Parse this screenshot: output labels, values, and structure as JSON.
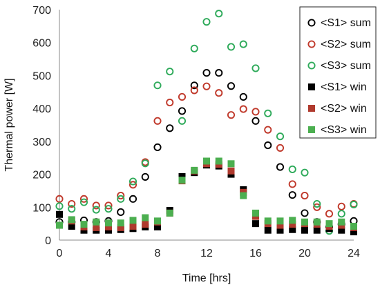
{
  "chart_data": {
    "type": "scatter",
    "title": "",
    "xlabel": "Time [hrs]",
    "ylabel": "Thermal power [W]",
    "xlim": [
      0,
      24
    ],
    "ylim": [
      0,
      700
    ],
    "xticks": [
      0,
      4,
      8,
      12,
      16,
      20,
      24
    ],
    "yticks": [
      0,
      100,
      200,
      300,
      400,
      500,
      600,
      700
    ],
    "grid": false,
    "legend_position": "top-right",
    "x": [
      0,
      1,
      2,
      3,
      4,
      5,
      6,
      7,
      8,
      9,
      10,
      11,
      12,
      13,
      14,
      15,
      16,
      17,
      18,
      19,
      20,
      21,
      22,
      23,
      24
    ],
    "series": [
      {
        "name": "<S1> sum",
        "marker": "open-circle",
        "color": "#000000",
        "values": [
          55,
          55,
          60,
          55,
          58,
          85,
          125,
          192,
          282,
          340,
          392,
          470,
          508,
          508,
          468,
          435,
          362,
          288,
          222,
          137,
          82,
          55,
          40,
          48,
          58
        ]
      },
      {
        "name": "<S2> sum",
        "marker": "open-circle",
        "color": "#c0392b",
        "values": [
          125,
          110,
          125,
          105,
          105,
          135,
          168,
          237,
          362,
          418,
          435,
          455,
          467,
          447,
          380,
          398,
          390,
          335,
          280,
          170,
          135,
          100,
          80,
          102,
          110
        ]
      },
      {
        "name": "<S3> sum",
        "marker": "open-circle",
        "color": "#2eaa5a",
        "values": [
          103,
          95,
          115,
          92,
          95,
          125,
          178,
          233,
          470,
          512,
          362,
          582,
          663,
          688,
          587,
          595,
          522,
          385,
          315,
          215,
          205,
          110,
          28,
          80,
          108
        ]
      },
      {
        "name": "<S1> win",
        "marker": "filled-square",
        "color": "#000000",
        "values": [
          78,
          42,
          30,
          30,
          30,
          32,
          35,
          40,
          40,
          90,
          193,
          205,
          228,
          225,
          200,
          153,
          50,
          30,
          30,
          32,
          30,
          30,
          35,
          30,
          25
        ]
      },
      {
        "name": "<S2> win",
        "marker": "filled-square",
        "color": "#b03a2e",
        "values": [
          45,
          58,
          40,
          38,
          40,
          38,
          42,
          48,
          55,
          82,
          180,
          210,
          232,
          230,
          210,
          145,
          72,
          50,
          45,
          48,
          50,
          48,
          42,
          45,
          38
        ]
      },
      {
        "name": "<S3> win",
        "marker": "filled-square",
        "color": "#4caf50",
        "values": [
          45,
          62,
          48,
          55,
          52,
          52,
          60,
          68,
          58,
          82,
          182,
          212,
          240,
          240,
          232,
          135,
          82,
          58,
          58,
          60,
          55,
          55,
          50,
          55,
          42
        ]
      }
    ]
  }
}
